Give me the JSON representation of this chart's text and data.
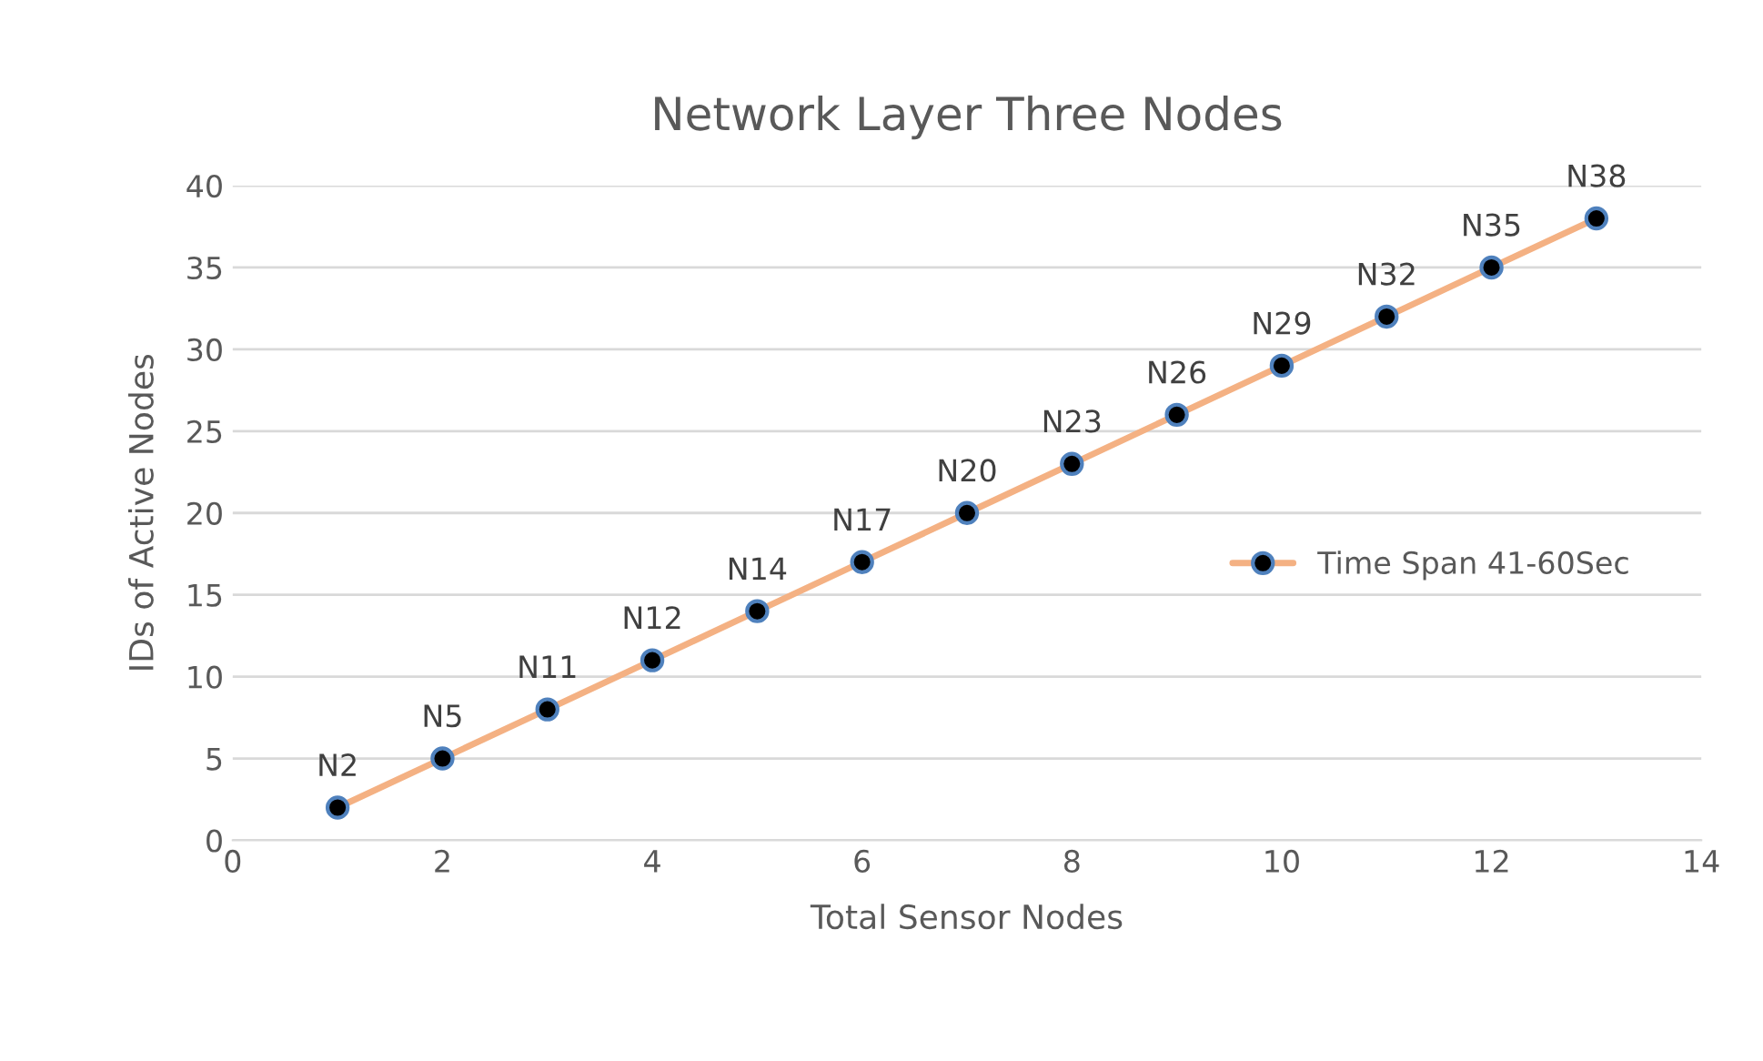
{
  "chart_data": {
    "type": "line",
    "title": "Network Layer Three Nodes",
    "xlabel": "Total Sensor Nodes",
    "ylabel": "IDs of Active Nodes",
    "x": [
      1,
      2,
      3,
      4,
      5,
      6,
      7,
      8,
      9,
      10,
      11,
      12,
      13
    ],
    "series": [
      {
        "name": "Time Span 41-60Sec",
        "color": "#f4b183",
        "values": [
          2,
          5,
          8,
          11,
          14,
          17,
          20,
          23,
          26,
          29,
          32,
          35,
          38
        ],
        "value_labels": [
          "N2",
          "N5",
          "N11",
          "N12",
          "N14",
          "N17",
          "N20",
          "N23",
          "N26",
          "N29",
          "N32",
          "N35",
          "N38"
        ]
      }
    ],
    "xlim": [
      0,
      14
    ],
    "xticks": [
      0,
      2,
      4,
      6,
      8,
      10,
      12,
      14
    ],
    "ylim": [
      0,
      40
    ],
    "yticks": [
      0,
      5,
      10,
      15,
      20,
      25,
      30,
      35,
      40
    ],
    "grid": "y",
    "legend": "right",
    "marker": "circle",
    "line_style": "solid"
  }
}
